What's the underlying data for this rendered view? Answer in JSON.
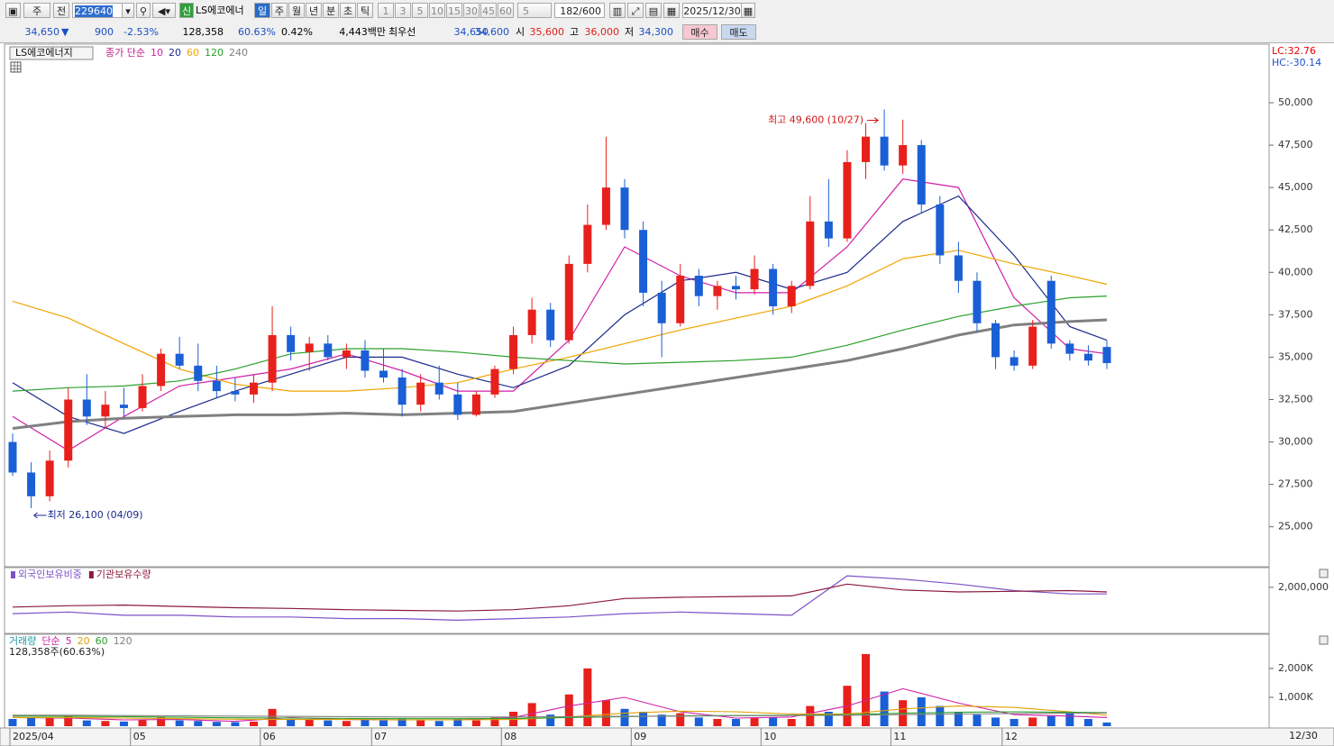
{
  "toolbar": {
    "mode": "주",
    "range": "전",
    "code": "229640",
    "flag": "신",
    "name": "LS에코에너",
    "periods": [
      "일",
      "주",
      "월",
      "년",
      "분",
      "초",
      "틱"
    ],
    "minutes": [
      "1",
      "3",
      "5",
      "10",
      "15",
      "30",
      "45",
      "60"
    ],
    "minute_select": "5",
    "count": "182/600",
    "date": "2025/12/30"
  },
  "quote": {
    "price": "34,650",
    "arrow": "▼",
    "change": "900",
    "rate": "-2.53%",
    "volume": "128,358",
    "ratio": "60.63%",
    "turnover": "0.42%",
    "amount": "4,443백만",
    "best_label": "최우선",
    "ask": "34,650",
    "bid": "34,600",
    "open_label": "시",
    "open": "35,600",
    "high_label": "고",
    "high": "36,000",
    "low_label": "저",
    "low": "34,300",
    "buy": "매수",
    "sell": "매도"
  },
  "chart_data": [
    {
      "type": "candlestick",
      "title": "LS에코에너지",
      "legend_prefix": "종가 단순",
      "legend_color": "#c0208a",
      "lc": "LC:32.76",
      "hc": "HC:-30.14",
      "up_color": "#e8201b",
      "down_color": "#1a5fd6",
      "ylim": [
        22700,
        53400
      ],
      "yticks": [
        {
          "value": 25000,
          "label": "25,000"
        },
        {
          "value": 27500,
          "label": "27,500"
        },
        {
          "value": 30000,
          "label": "30,000"
        },
        {
          "value": 32500,
          "label": "32,500"
        },
        {
          "value": 35000,
          "label": "35,000"
        },
        {
          "value": 37500,
          "label": "37,500"
        },
        {
          "value": 40000,
          "label": "40,000"
        },
        {
          "value": 42500,
          "label": "42,500"
        },
        {
          "value": 45000,
          "label": "45,000"
        },
        {
          "value": 47500,
          "label": "47,500"
        },
        {
          "value": 50000,
          "label": "50,000"
        }
      ],
      "annotations": {
        "high": "최고 49,600 (10/27)",
        "low": "최저 26,100 (04/09)"
      },
      "candles": [
        [
          30000,
          30500,
          28000,
          28200
        ],
        [
          28200,
          28800,
          26100,
          26800
        ],
        [
          26800,
          29500,
          26500,
          28900
        ],
        [
          28900,
          33200,
          28500,
          32500
        ],
        [
          32500,
          34000,
          31000,
          31500
        ],
        [
          31500,
          33000,
          30800,
          32200
        ],
        [
          32200,
          33200,
          31500,
          32000
        ],
        [
          32000,
          34000,
          31800,
          33300
        ],
        [
          33300,
          35500,
          33000,
          35200
        ],
        [
          35200,
          36200,
          34300,
          34500
        ],
        [
          34500,
          35800,
          33000,
          33600
        ],
        [
          33600,
          34500,
          32600,
          33000
        ],
        [
          33000,
          33800,
          32400,
          32800
        ],
        [
          32800,
          34000,
          32300,
          33500
        ],
        [
          33500,
          38000,
          33000,
          36300
        ],
        [
          36300,
          36800,
          34800,
          35300
        ],
        [
          35300,
          36200,
          34200,
          35800
        ],
        [
          35800,
          36300,
          34800,
          35000
        ],
        [
          35000,
          35800,
          34300,
          35400
        ],
        [
          35400,
          36000,
          33800,
          34200
        ],
        [
          34200,
          35500,
          33500,
          33800
        ],
        [
          33800,
          34300,
          31500,
          32200
        ],
        [
          32200,
          34000,
          31800,
          33500
        ],
        [
          33500,
          34500,
          32500,
          32800
        ],
        [
          32800,
          33500,
          31300,
          31600
        ],
        [
          31600,
          33000,
          31500,
          32800
        ],
        [
          32800,
          34500,
          32600,
          34300
        ],
        [
          34300,
          36800,
          34000,
          36300
        ],
        [
          36300,
          38500,
          35800,
          37800
        ],
        [
          37800,
          38200,
          35600,
          36000
        ],
        [
          36000,
          41000,
          35800,
          40500
        ],
        [
          40500,
          44000,
          40000,
          42800
        ],
        [
          42800,
          48000,
          42500,
          45000
        ],
        [
          45000,
          45500,
          42000,
          42500
        ],
        [
          42500,
          43000,
          38000,
          38800
        ],
        [
          38800,
          39500,
          35000,
          37000
        ],
        [
          37000,
          40500,
          36800,
          39800
        ],
        [
          39800,
          40200,
          38000,
          38600
        ],
        [
          38600,
          39500,
          37800,
          39200
        ],
        [
          39200,
          39800,
          38400,
          39000
        ],
        [
          39000,
          41000,
          38700,
          40200
        ],
        [
          40200,
          40500,
          37500,
          38000
        ],
        [
          38000,
          39500,
          37600,
          39200
        ],
        [
          39200,
          44500,
          39000,
          43000
        ],
        [
          43000,
          45500,
          41500,
          42000
        ],
        [
          42000,
          47200,
          41800,
          46500
        ],
        [
          46500,
          48800,
          45500,
          48000
        ],
        [
          48000,
          49600,
          46000,
          46300
        ],
        [
          46300,
          49000,
          45800,
          47500
        ],
        [
          47500,
          47800,
          43500,
          44000
        ],
        [
          44000,
          44500,
          40500,
          41000
        ],
        [
          41000,
          41800,
          38800,
          39500
        ],
        [
          39500,
          40000,
          36500,
          37000
        ],
        [
          37000,
          37200,
          34300,
          35000
        ],
        [
          35000,
          35400,
          34200,
          34500
        ],
        [
          34500,
          37200,
          34300,
          36800
        ],
        [
          39500,
          39800,
          35500,
          35800
        ],
        [
          35800,
          36000,
          34800,
          35200
        ],
        [
          35200,
          35700,
          34500,
          34800
        ],
        [
          35600,
          36000,
          34300,
          34650
        ]
      ],
      "ma_x": [
        0,
        3,
        6,
        9,
        12,
        15,
        18,
        21,
        24,
        27,
        30,
        33,
        36,
        39,
        42,
        45,
        48,
        51,
        54,
        57,
        59
      ],
      "ma": [
        {
          "name": "10",
          "color": "#d01fa8",
          "values": [
            31500,
            29500,
            31500,
            33300,
            33800,
            34300,
            35200,
            34200,
            33000,
            33000,
            36000,
            41500,
            39800,
            38800,
            38800,
            41500,
            45500,
            45000,
            38500,
            35500,
            35200
          ]
        },
        {
          "name": "20",
          "color": "#1c2a8c",
          "values": [
            33500,
            31500,
            30500,
            31800,
            33000,
            34000,
            35000,
            35000,
            34000,
            33200,
            34500,
            37500,
            39500,
            40000,
            39000,
            40000,
            43000,
            44500,
            41000,
            36800,
            36000
          ]
        },
        {
          "name": "60",
          "color": "#f0a500",
          "values": [
            38300,
            37300,
            35800,
            34300,
            33400,
            33000,
            33000,
            33200,
            33500,
            34300,
            35000,
            35800,
            36600,
            37300,
            38000,
            39200,
            40800,
            41300,
            40500,
            39800,
            39300
          ]
        },
        {
          "name": "120",
          "color": "#2aa02a",
          "values": [
            33000,
            33200,
            33300,
            33600,
            34300,
            35200,
            35500,
            35500,
            35300,
            35000,
            34800,
            34600,
            34700,
            34800,
            35000,
            35700,
            36600,
            37400,
            38000,
            38500,
            38600
          ]
        },
        {
          "name": "240",
          "color": "#808080",
          "values": [
            30800,
            31200,
            31400,
            31500,
            31600,
            31600,
            31700,
            31600,
            31700,
            31800,
            32300,
            32800,
            33300,
            33800,
            34300,
            34800,
            35500,
            36300,
            36900,
            37100,
            37200
          ]
        }
      ]
    },
    {
      "type": "line",
      "x": [
        0,
        3,
        6,
        9,
        12,
        15,
        18,
        21,
        24,
        27,
        30,
        33,
        36,
        39,
        42,
        45,
        48,
        51,
        54,
        57,
        59
      ],
      "ylim": [
        1300000,
        2300000
      ],
      "yticks": [
        {
          "value": 2000000,
          "label": "2,000,000"
        }
      ],
      "y2lim": [
        2,
        6
      ],
      "series": [
        {
          "name": "외국인보유비중",
          "color": "#7b52c8",
          "axis": "y2",
          "values": [
            3.2,
            3.3,
            3.1,
            3.1,
            3.0,
            3.0,
            2.9,
            2.9,
            2.8,
            2.9,
            3.0,
            3.2,
            3.3,
            3.2,
            3.1,
            5.5,
            5.3,
            5.0,
            4.6,
            4.4,
            4.4
          ]
        },
        {
          "name": "기관보유수량",
          "color": "#8b1a3a",
          "values": [
            1700000,
            1720000,
            1730000,
            1710000,
            1690000,
            1680000,
            1660000,
            1650000,
            1640000,
            1660000,
            1720000,
            1830000,
            1850000,
            1860000,
            1870000,
            2050000,
            1960000,
            1930000,
            1940000,
            1950000,
            1930000
          ]
        }
      ]
    },
    {
      "type": "bar",
      "title": "거래량",
      "title_color": "#1a9aa0",
      "legend_prefix": "단순",
      "subtitle": "128,358주(60.63%)",
      "ylim": [
        0,
        3060000
      ],
      "yticks": [
        {
          "value": 1000000,
          "label": "1,000K"
        },
        {
          "value": 2000000,
          "label": "2,000K"
        }
      ],
      "xticks": [
        {
          "value": 0,
          "label": "2025/04"
        },
        {
          "value": 6.5,
          "label": "05"
        },
        {
          "value": 13.5,
          "label": "06"
        },
        {
          "value": 19.5,
          "label": "07"
        },
        {
          "value": 26.5,
          "label": "08"
        },
        {
          "value": 33.5,
          "label": "09"
        },
        {
          "value": 40.5,
          "label": "10"
        },
        {
          "value": 47.5,
          "label": "11"
        },
        {
          "value": 53.5,
          "label": "12"
        }
      ],
      "x_end_label": "12/30",
      "values": [
        250000,
        300000,
        280000,
        350000,
        200000,
        180000,
        160000,
        220000,
        300000,
        200000,
        180000,
        150000,
        140000,
        160000,
        600000,
        250000,
        220000,
        200000,
        180000,
        220000,
        200000,
        280000,
        200000,
        180000,
        250000,
        200000,
        300000,
        500000,
        800000,
        400000,
        1100000,
        2000000,
        900000,
        600000,
        500000,
        400000,
        450000,
        300000,
        250000,
        250000,
        280000,
        300000,
        250000,
        700000,
        500000,
        1400000,
        2500000,
        1200000,
        900000,
        1000000,
        700000,
        500000,
        400000,
        300000,
        250000,
        300000,
        350000,
        500000,
        250000,
        128358
      ],
      "ma_x": [
        0,
        3,
        6,
        9,
        12,
        15,
        18,
        21,
        24,
        27,
        30,
        33,
        36,
        39,
        42,
        45,
        48,
        51,
        54,
        57,
        59
      ],
      "series": [
        {
          "name": "5",
          "color": "#d01fa8",
          "values": [
            300000,
            280000,
            220000,
            230000,
            170000,
            300000,
            230000,
            220000,
            220000,
            300000,
            700000,
            1000000,
            500000,
            280000,
            320000,
            700000,
            1300000,
            800000,
            400000,
            350000,
            300000
          ]
        },
        {
          "name": "20",
          "color": "#e0a000",
          "values": [
            300000,
            300000,
            280000,
            260000,
            240000,
            230000,
            230000,
            220000,
            220000,
            230000,
            320000,
            450000,
            520000,
            500000,
            420000,
            420000,
            600000,
            700000,
            650000,
            500000,
            380000
          ]
        },
        {
          "name": "60",
          "color": "#2aa02a",
          "values": [
            350000,
            340000,
            330000,
            310000,
            290000,
            280000,
            270000,
            260000,
            260000,
            270000,
            300000,
            330000,
            360000,
            370000,
            380000,
            400000,
            450000,
            480000,
            500000,
            480000,
            470000
          ]
        },
        {
          "name": "120",
          "color": "#808080",
          "values": [
            380000,
            380000,
            370000,
            360000,
            350000,
            340000,
            330000,
            320000,
            320000,
            320000,
            330000,
            340000,
            350000,
            360000,
            370000,
            380000,
            400000,
            420000,
            440000,
            450000,
            460000
          ]
        }
      ]
    }
  ]
}
